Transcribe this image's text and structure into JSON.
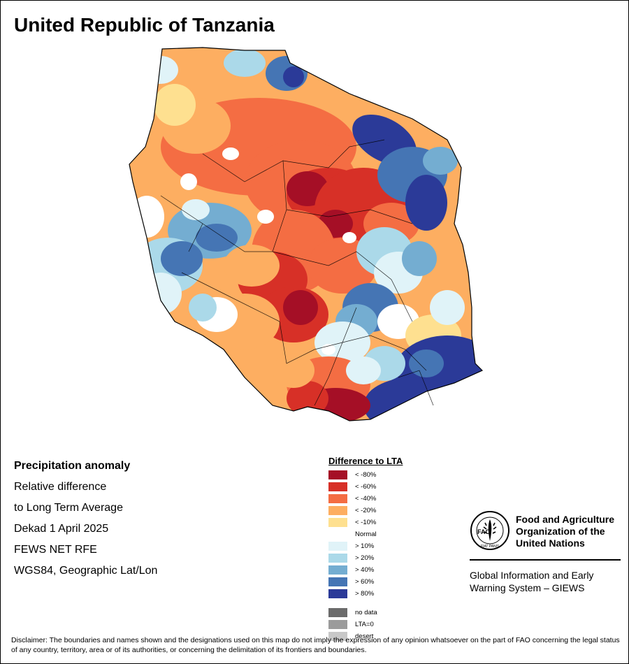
{
  "title": "United Republic of Tanzania",
  "info_lines": [
    "Precipitation anomaly",
    "Relative difference",
    "to Long Term Average",
    "Dekad 1 April 2025",
    "FEWS NET RFE",
    "WGS84, Geographic Lat/Lon"
  ],
  "legend": {
    "title": "Difference to LTA",
    "classes": [
      {
        "label": "< -80%",
        "color": "#a50f26"
      },
      {
        "label": "< -60%",
        "color": "#d73027"
      },
      {
        "label": "< -40%",
        "color": "#f46d43"
      },
      {
        "label": "< -20%",
        "color": "#fdae61"
      },
      {
        "label": "< -10%",
        "color": "#fee090"
      },
      {
        "label": "Normal",
        "color": "#ffffff"
      },
      {
        "label": "> 10%",
        "color": "#e0f3f8"
      },
      {
        "label": "> 20%",
        "color": "#abd9e9"
      },
      {
        "label": "> 40%",
        "color": "#74add1"
      },
      {
        "label": "> 60%",
        "color": "#4575b4"
      },
      {
        "label": "> 80%",
        "color": "#2b3a98"
      }
    ],
    "extra": [
      {
        "label": "no data",
        "color": "#6b6b6b"
      },
      {
        "label": "LTA=0",
        "color": "#9b9b9b"
      },
      {
        "label": "desert",
        "color": "#c8c8c8"
      }
    ]
  },
  "organization": {
    "name": "Food and Agriculture Organization of the United Nations",
    "name_lines": [
      "Food and Agriculture",
      "Organization of the",
      "United Nations"
    ],
    "logo_letters": "FAO",
    "motto": "FIAT PANIS",
    "system_lines": [
      "Global Information and Early",
      "Warning System – GIEWS"
    ]
  },
  "disclaimer": "Disclaimer: The boundaries and names shown and the designations used on this map do not imply the expression of any opinion whatsoever on the part of FAO concerning the legal status of any country, territory, area or of its authorities, or concerning the delimitation of its frontiers and boundaries."
}
